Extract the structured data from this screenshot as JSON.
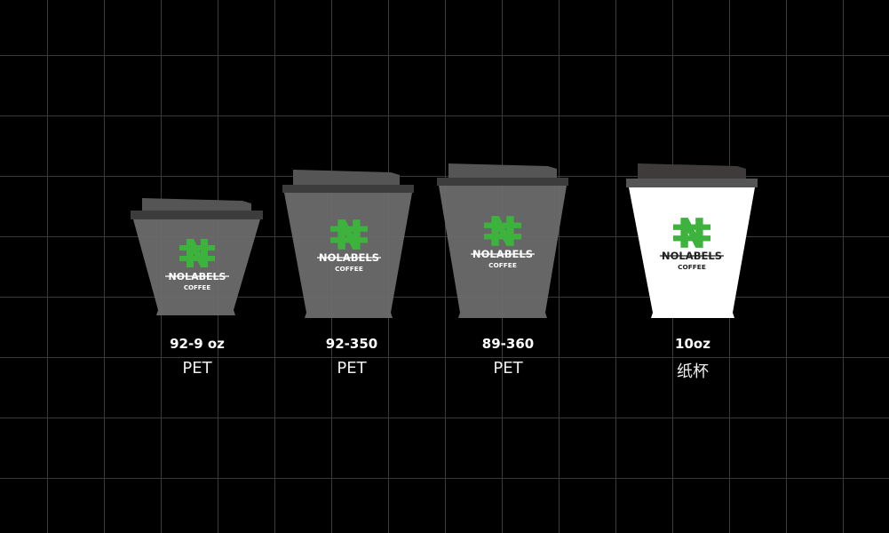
{
  "colors": {
    "background": "#000000",
    "grid": "#3a3a3a",
    "pet_cup": "#6b6b6b",
    "paper_cup": "#ffffff",
    "lid": "#4a4a4a",
    "logo_green": "#3db33d"
  },
  "brand": {
    "name": "NOLABELS",
    "sub": "COFFEE",
    "logo_icon": "n-hash-logo-icon"
  },
  "cups": [
    {
      "size": "92-9 oz",
      "material": "PET"
    },
    {
      "size": "92-350",
      "material": "PET"
    },
    {
      "size": "89-360",
      "material": "PET"
    },
    {
      "size": "10oz",
      "material": "纸杯"
    }
  ]
}
